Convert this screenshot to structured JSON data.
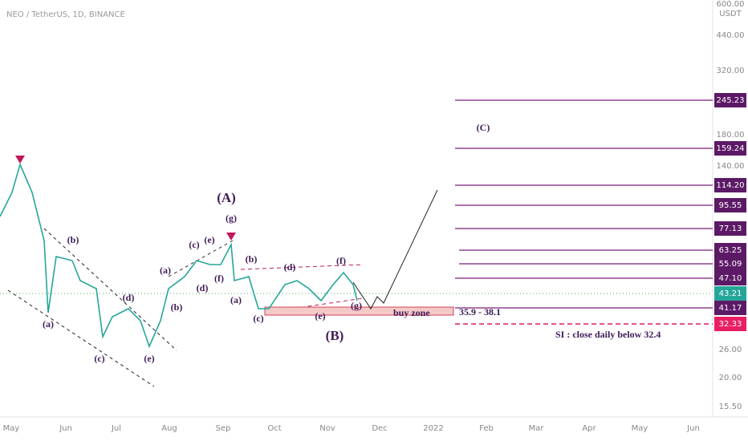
{
  "header": {
    "symbol": "NEO / TetherUS, 1D, BINANCE"
  },
  "price_axis": {
    "unit": "USDT",
    "labels": [
      "600.00",
      "440.00",
      "320.00",
      "180.00",
      "140.00",
      "26.00",
      "20.00",
      "15.50"
    ]
  },
  "level_labels": [
    "245.23",
    "159.24",
    "114.20",
    "95.55",
    "77.13",
    "63.25",
    "55.09",
    "47.10",
    "41.17"
  ],
  "current_price": "43.21",
  "stop_level": "32.33",
  "time_axis": [
    "May",
    "Jun",
    "Jul",
    "Aug",
    "Sep",
    "Oct",
    "Nov",
    "Dec",
    "2022",
    "Feb",
    "Mar",
    "Apr",
    "May",
    "Jun"
  ],
  "wave_labels": [
    "(A)",
    "(g)",
    "(B)",
    "(C)",
    "(a)",
    "(b)",
    "(c)",
    "(d)",
    "(e)",
    "(a)",
    "(b)",
    "(c)",
    "(e)",
    "(d)",
    "(f)",
    "(b)",
    "(a)",
    "(c)",
    "(d)",
    "(e)",
    "(f)",
    "(g)"
  ],
  "buy_zone": {
    "label": "buy zone",
    "range": "35.9 - 38.1"
  },
  "stop_note": "SI : close daily below 32.4"
}
